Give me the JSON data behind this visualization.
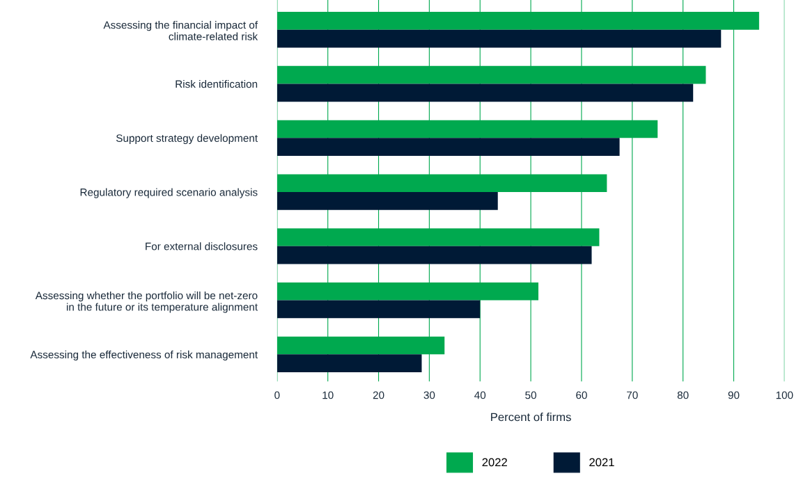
{
  "chart_data": {
    "type": "bar",
    "orientation": "horizontal",
    "xlabel": "Percent of firms",
    "categories": [
      "Assessing the financial impact of\nclimate-related risk",
      "Risk identification",
      "Support strategy development",
      "Regulatory required scenario analysis",
      "For external disclosures",
      "Assessing whether the portfolio will be net-zero\nin the future or its temperature alignment",
      "Assessing the effectiveness of risk management"
    ],
    "series": [
      {
        "name": "2022",
        "color": "#00a94f",
        "values": [
          95,
          84.5,
          75,
          65,
          63.5,
          51.5,
          33
        ]
      },
      {
        "name": "2021",
        "color": "#001a36",
        "values": [
          87.5,
          82,
          67.5,
          43.5,
          62,
          40,
          28.5
        ]
      }
    ],
    "xlim": [
      0,
      100
    ],
    "xticks": [
      0,
      10,
      20,
      30,
      40,
      50,
      60,
      70,
      80,
      90,
      100
    ],
    "grid": "x",
    "legend": "bottom"
  }
}
